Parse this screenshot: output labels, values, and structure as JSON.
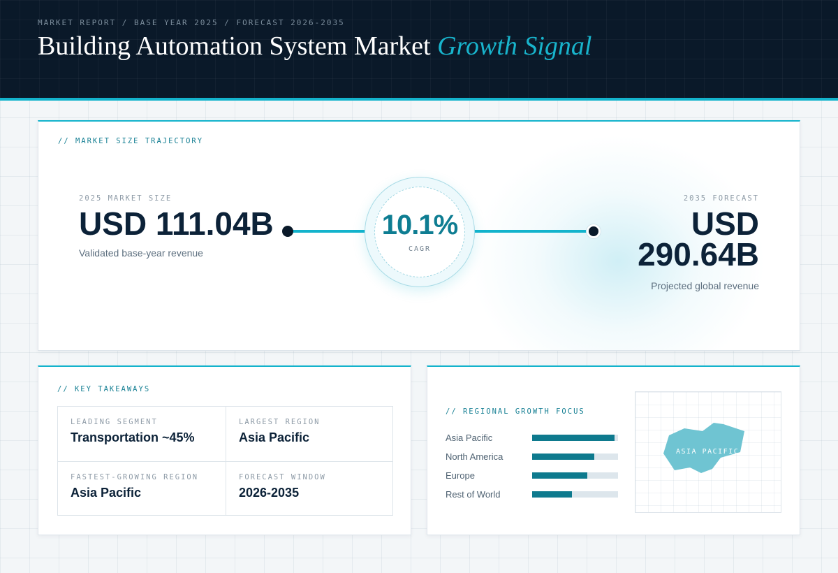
{
  "header": {
    "eyebrow": "MARKET REPORT / BASE YEAR 2025 / FORECAST 2026-2035",
    "title": "Building Automation System Market",
    "title_accent": "Growth Signal"
  },
  "trajectory": {
    "label": "// MARKET SIZE TRAJECTORY",
    "start": {
      "eyebrow": "2025 MARKET SIZE",
      "value": "USD 111.04B",
      "caption": "Validated base-year revenue"
    },
    "cagr": {
      "value": "10.1%",
      "label": "CAGR"
    },
    "end": {
      "eyebrow": "2035 FORECAST",
      "value": "USD 290.64B",
      "caption": "Projected global revenue"
    }
  },
  "takeaways": {
    "label": "// KEY TAKEAWAYS",
    "items": [
      {
        "label": "LEADING SEGMENT",
        "value": "Transportation ~45%"
      },
      {
        "label": "LARGEST REGION",
        "value": "Asia Pacific"
      },
      {
        "label": "FASTEST-GROWING REGION",
        "value": "Asia Pacific"
      },
      {
        "label": "FORECAST WINDOW",
        "value": "2026-2035"
      }
    ]
  },
  "regional": {
    "label": "// REGIONAL GROWTH FOCUS",
    "bars": [
      {
        "name": "Asia Pacific",
        "level": 0.96
      },
      {
        "name": "North America",
        "level": 0.72
      },
      {
        "name": "Europe",
        "level": 0.64
      },
      {
        "name": "Rest of World",
        "level": 0.46
      }
    ],
    "map_label": "ASIA PACIFIC"
  },
  "colors": {
    "accent": "#13b3cc",
    "bar": "#0e7a8e",
    "header_bg": "#0a1929",
    "map_region": "#6fc4d2"
  }
}
